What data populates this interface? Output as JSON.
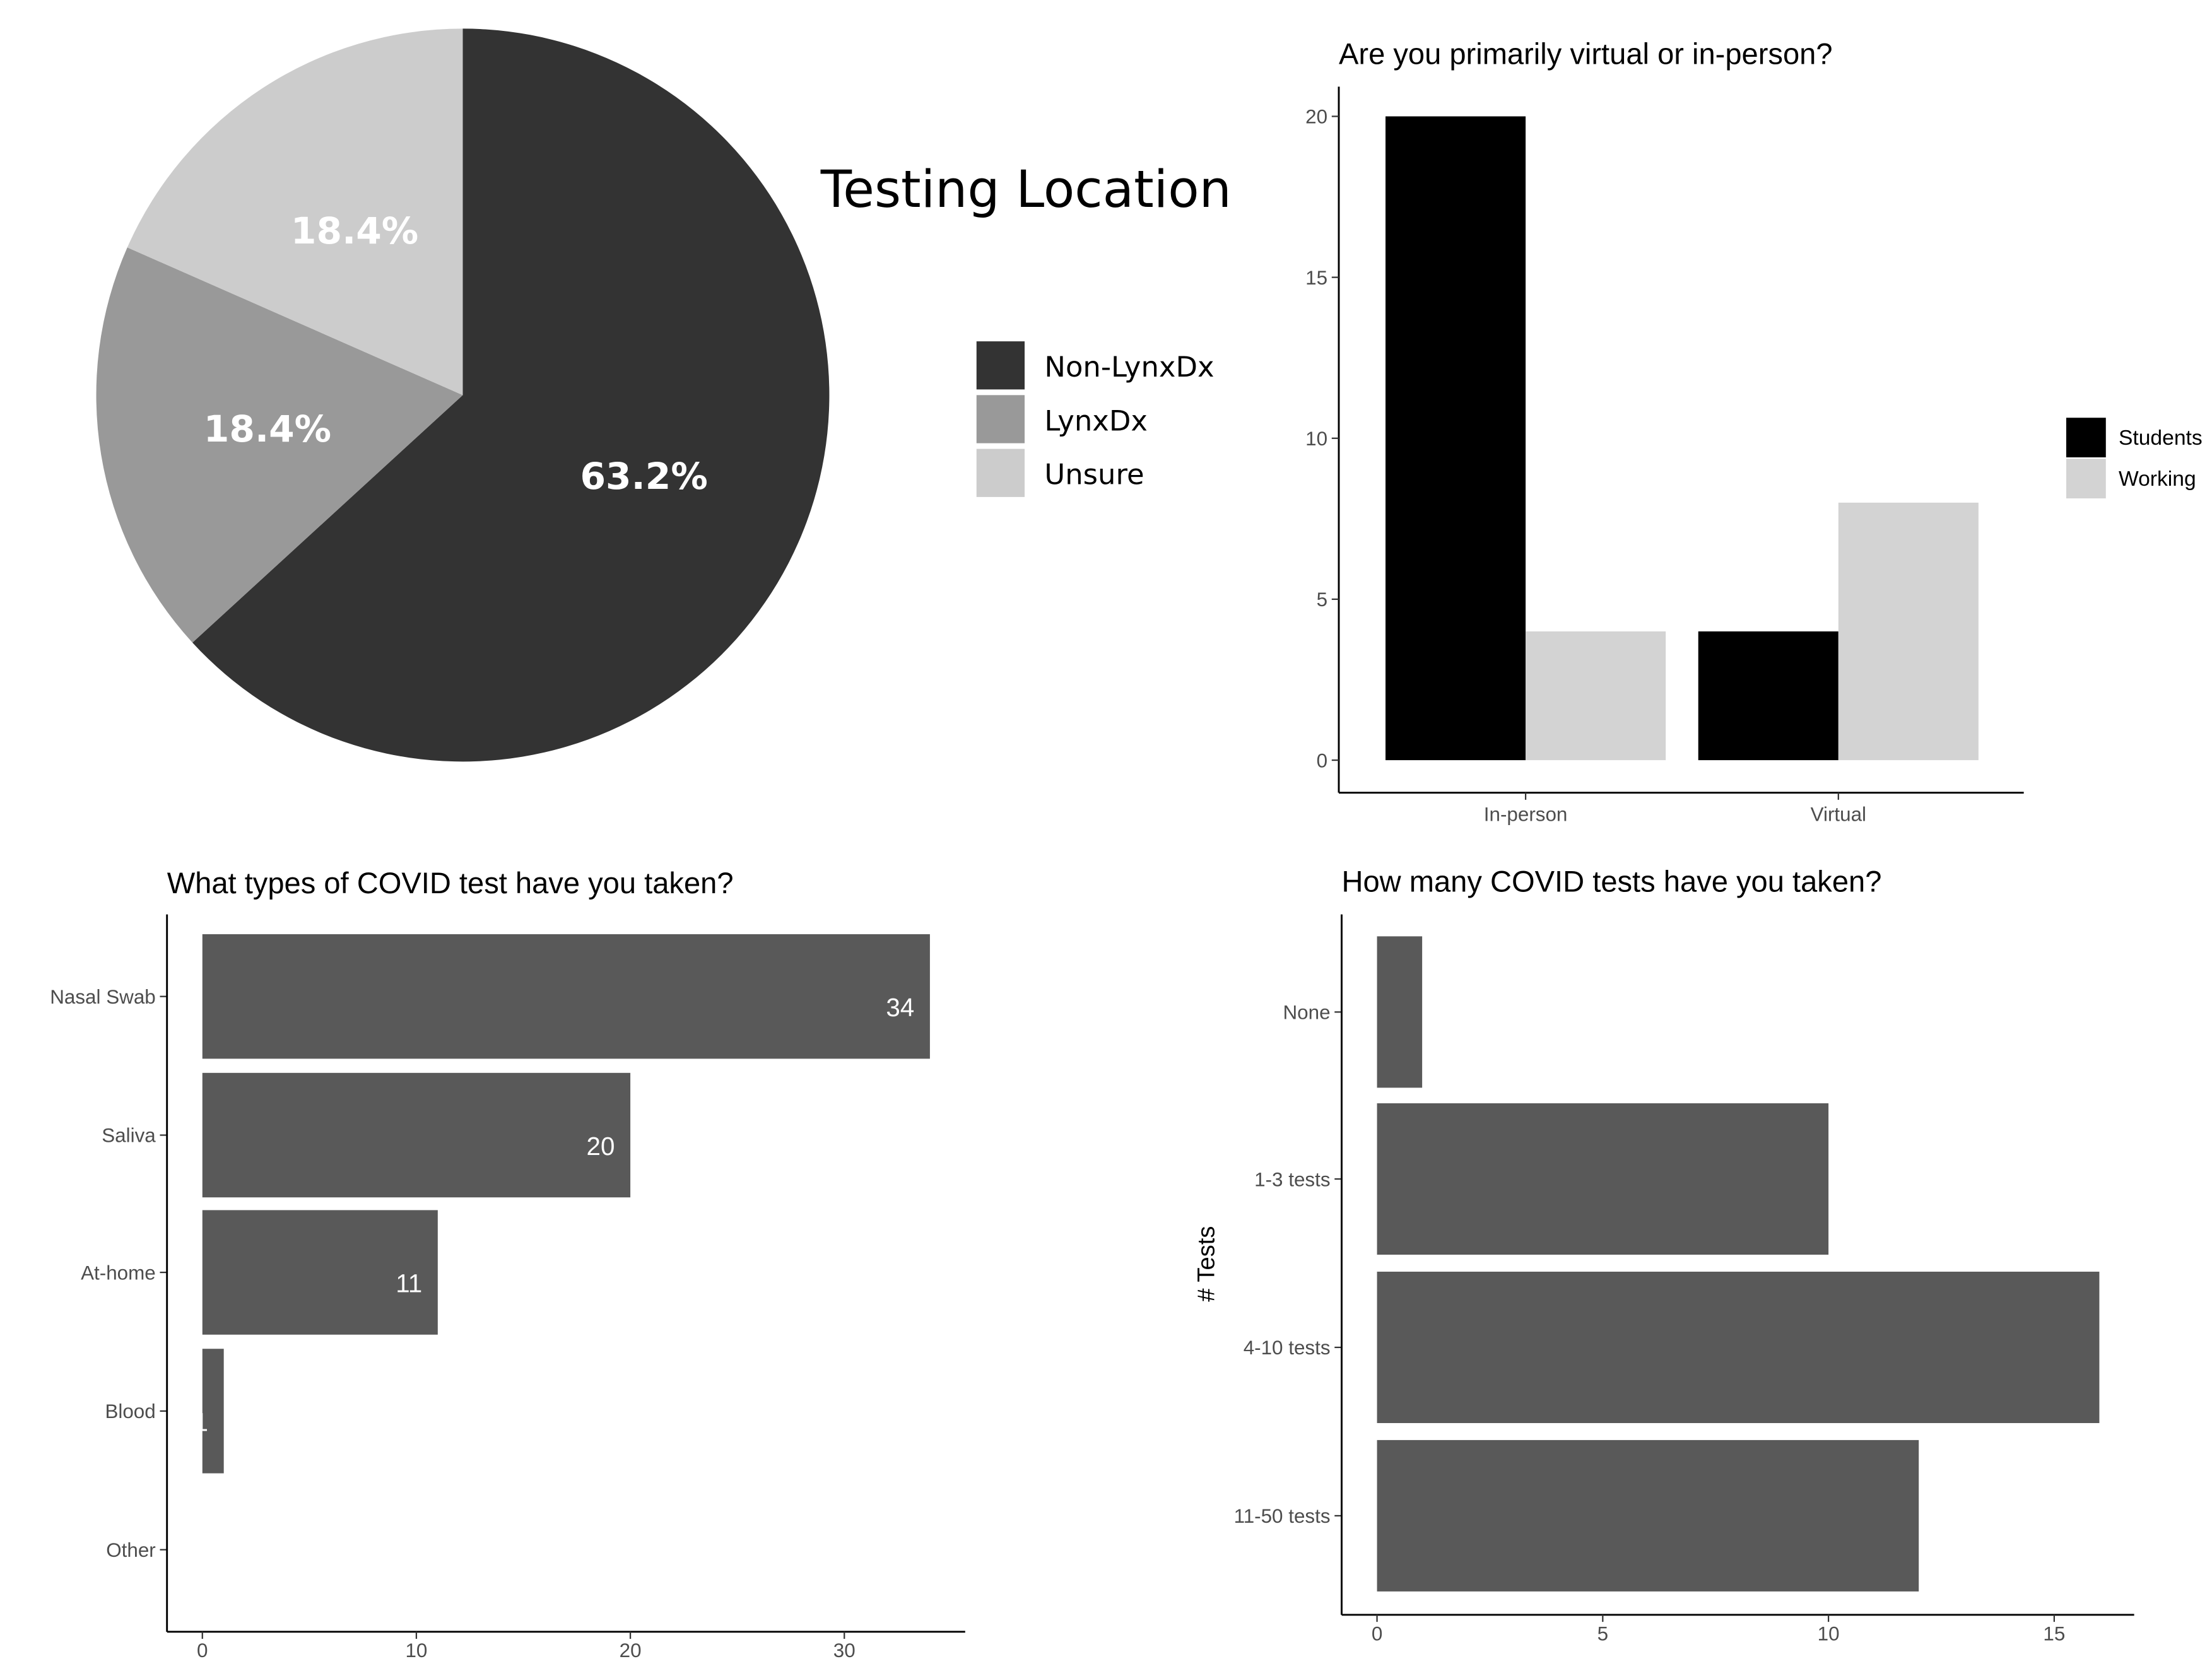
{
  "chart_data": [
    {
      "type": "pie",
      "title": "Testing Location",
      "labels": [
        "Non-LynxDx",
        "LynxDx",
        "Unsure"
      ],
      "values": [
        63.2,
        18.4,
        18.4
      ],
      "value_labels": [
        "63.2%",
        "18.4%",
        "18.4%"
      ],
      "colors": [
        "#333333",
        "#999999",
        "#cccccc"
      ],
      "legend": "right"
    },
    {
      "type": "bar",
      "title": "Are you primarily virtual or in-person?",
      "categories": [
        "In-person",
        "Virtual"
      ],
      "series": [
        {
          "name": "Students",
          "values": [
            20,
            4
          ],
          "color": "#000000"
        },
        {
          "name": "Working",
          "values": [
            4,
            8
          ],
          "color": "#d3d3d3"
        }
      ],
      "yticks": [
        "0",
        "5",
        "10",
        "15",
        "20"
      ],
      "ylim": [
        0,
        21
      ],
      "legend": "right",
      "grid": false
    },
    {
      "type": "bar",
      "orientation": "horizontal",
      "title": "What types of COVID test have you taken?",
      "categories": [
        "Nasal Swab",
        "Saliva",
        "At-home",
        "Blood",
        "Other"
      ],
      "values": [
        34,
        20,
        11,
        1,
        0
      ],
      "data_labels": [
        "34",
        "20",
        "11",
        "1",
        ""
      ],
      "xticks": [
        "0",
        "10",
        "20",
        "30"
      ],
      "xlim": [
        0,
        35.6
      ],
      "color": "#595959",
      "grid": false
    },
    {
      "type": "bar",
      "orientation": "horizontal",
      "title": "How many COVID tests have you taken?",
      "ylabel": "# Tests",
      "categories": [
        "None",
        "1-3 tests",
        "4-10 tests",
        "11-50 tests"
      ],
      "values": [
        1,
        10,
        16,
        12
      ],
      "xticks": [
        "0",
        "5",
        "10",
        "15"
      ],
      "xlim": [
        0,
        16.8
      ],
      "color": "#595959",
      "grid": false
    }
  ]
}
